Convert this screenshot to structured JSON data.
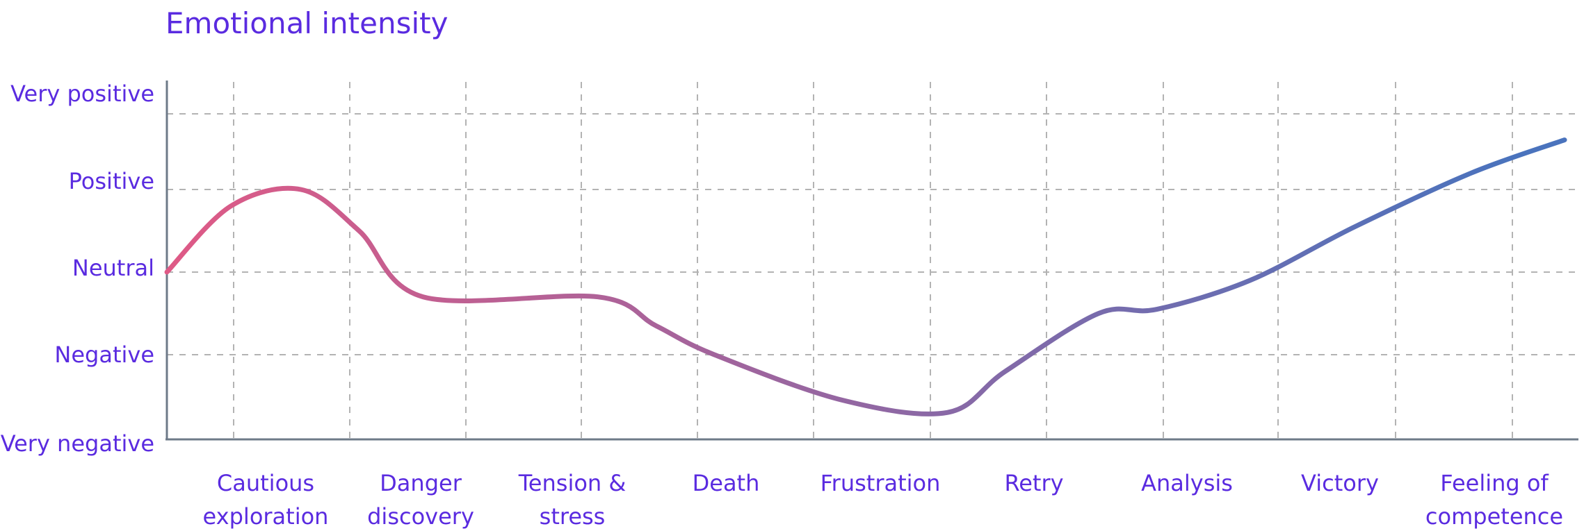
{
  "chart_data": {
    "type": "line",
    "title": "Emotional intensity",
    "xlabel": "",
    "ylabel": "",
    "y_tick_labels": [
      "Very negative",
      "Negative",
      "Neutral",
      "Positive",
      "Very positive"
    ],
    "ylim": [
      -2,
      2
    ],
    "categories": [
      "Cautious exploration",
      "Danger discovery",
      "Tension & stress",
      "Death",
      "Frustration",
      "Retry",
      "Analysis",
      "Victory",
      "Feeling of competence"
    ],
    "grid": true,
    "legend": "none",
    "gradient_colors": [
      "#df5a86",
      "#4a73bd"
    ],
    "series": [
      {
        "x": [
          0,
          0.55,
          1.15,
          1.65,
          2.2,
          3.7,
          4.2,
          4.7,
          5.8,
          6.7,
          7.2,
          8.0,
          8.5,
          9.3,
          10.2,
          11.2,
          12.0
        ],
        "values": [
          0.0,
          0.8,
          1.0,
          0.5,
          -0.3,
          -0.3,
          -0.65,
          -1.0,
          -1.55,
          -1.7,
          -1.2,
          -0.5,
          -0.45,
          -0.1,
          0.55,
          1.2,
          1.6
        ]
      }
    ]
  }
}
